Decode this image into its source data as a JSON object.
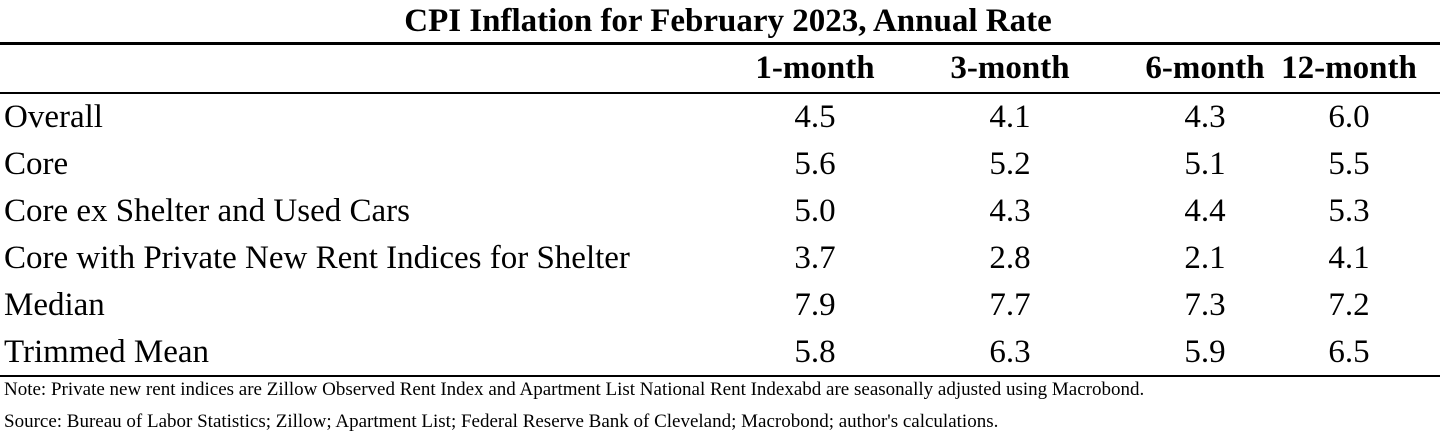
{
  "title": "CPI Inflation for February 2023, Annual Rate",
  "columns": [
    "1-month",
    "3-month",
    "6-month",
    "12-month"
  ],
  "rows": [
    {
      "label": "Overall",
      "values": [
        "4.5",
        "4.1",
        "4.3",
        "6.0"
      ]
    },
    {
      "label": "Core",
      "values": [
        "5.6",
        "5.2",
        "5.1",
        "5.5"
      ]
    },
    {
      "label": "Core ex Shelter and Used Cars",
      "values": [
        "5.0",
        "4.3",
        "4.4",
        "5.3"
      ]
    },
    {
      "label": "Core with Private New Rent Indices for Shelter",
      "values": [
        "3.7",
        "2.8",
        "2.1",
        "4.1"
      ]
    },
    {
      "label": "Median",
      "values": [
        "7.9",
        "7.7",
        "7.3",
        "7.2"
      ]
    },
    {
      "label": "Trimmed Mean",
      "values": [
        "5.8",
        "6.3",
        "5.9",
        "6.5"
      ]
    }
  ],
  "note": "Note: Private new rent indices are Zillow Observed Rent Index and Apartment List National Rent Indexabd are seasonally adjusted using Macrobond.",
  "source": "Source: Bureau of Labor Statistics; Zillow; Apartment List; Federal Reserve Bank of Cleveland; Macrobond; author's calculations."
}
